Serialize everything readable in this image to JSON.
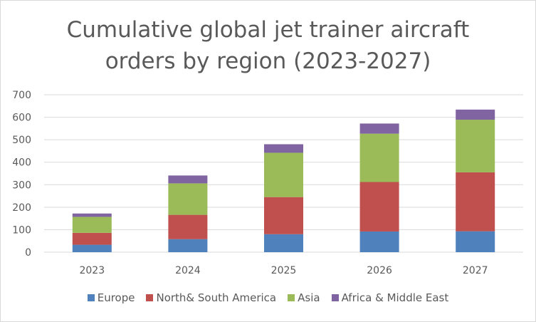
{
  "chart_data": {
    "type": "bar",
    "stacked": true,
    "title_lines": [
      "Cumulative global jet trainer aircraft",
      "orders by region (2023-2027)"
    ],
    "xlabel": "",
    "ylabel": "",
    "categories": [
      "2023",
      "2024",
      "2025",
      "2026",
      "2027"
    ],
    "ylim": [
      0,
      700
    ],
    "yticks": [
      0,
      100,
      200,
      300,
      400,
      500,
      600,
      700
    ],
    "grid": true,
    "legend_position": "bottom",
    "series": [
      {
        "name": "Europe",
        "color": "#4f81bd",
        "values": [
          33,
          58,
          80,
          92,
          93
        ]
      },
      {
        "name": "North& South America",
        "color": "#c0504d",
        "values": [
          53,
          108,
          165,
          220,
          262
        ]
      },
      {
        "name": "Asia",
        "color": "#9bbb59",
        "values": [
          71,
          140,
          197,
          215,
          234
        ]
      },
      {
        "name": "Africa & Middle East",
        "color": "#8064a2",
        "values": [
          15,
          35,
          38,
          45,
          45
        ]
      }
    ]
  }
}
